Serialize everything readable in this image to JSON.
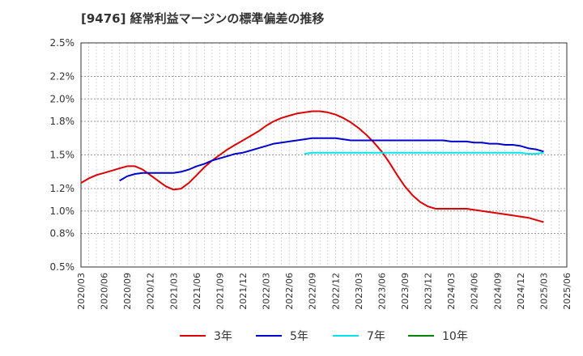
{
  "title": "[9476]  経常利益マージンの標準偏差の推移",
  "chart_data": {
    "type": "line",
    "title": "[9476]  経常利益マージンの標準偏差の推移",
    "y_ticks": [
      "0.5%",
      "0.8%",
      "1.0%",
      "1.2%",
      "1.5%",
      "1.8%",
      "2.0%",
      "2.2%",
      "2.5%"
    ],
    "ylim": [
      0.5,
      2.5
    ],
    "x_ticks": [
      "2020/03",
      "2020/06",
      "2020/09",
      "2020/12",
      "2021/03",
      "2021/06",
      "2021/09",
      "2021/12",
      "2022/03",
      "2022/06",
      "2022/09",
      "2022/12",
      "2023/03",
      "2023/06",
      "2023/09",
      "2023/12",
      "2024/03",
      "2024/06",
      "2024/09",
      "2024/12",
      "2025/03",
      "2025/06"
    ],
    "grid": true,
    "legend_position": "bottom",
    "series": [
      {
        "name": "3年",
        "color": "#dd0000",
        "x": [
          "2020/03",
          "2020/04",
          "2020/05",
          "2020/06",
          "2020/07",
          "2020/08",
          "2020/09",
          "2020/10",
          "2020/11",
          "2020/12",
          "2021/01",
          "2021/02",
          "2021/03",
          "2021/04",
          "2021/05",
          "2021/06",
          "2021/07",
          "2021/08",
          "2021/09",
          "2021/10",
          "2021/11",
          "2021/12",
          "2022/01",
          "2022/02",
          "2022/03",
          "2022/04",
          "2022/05",
          "2022/06",
          "2022/07",
          "2022/08",
          "2022/09",
          "2022/10",
          "2022/11",
          "2022/12",
          "2023/01",
          "2023/02",
          "2023/03",
          "2023/04",
          "2023/05",
          "2023/06",
          "2023/07",
          "2023/08",
          "2023/09",
          "2023/10",
          "2023/11",
          "2023/12",
          "2024/01",
          "2024/02",
          "2024/03",
          "2024/04",
          "2024/05",
          "2024/06",
          "2024/07",
          "2024/08",
          "2024/09",
          "2024/10",
          "2024/11",
          "2024/12",
          "2025/01",
          "2025/02",
          "2025/03"
        ],
        "values": [
          1.25,
          1.29,
          1.32,
          1.34,
          1.36,
          1.38,
          1.4,
          1.4,
          1.37,
          1.32,
          1.27,
          1.22,
          1.19,
          1.2,
          1.25,
          1.32,
          1.39,
          1.45,
          1.5,
          1.55,
          1.59,
          1.63,
          1.67,
          1.71,
          1.76,
          1.8,
          1.83,
          1.85,
          1.87,
          1.88,
          1.89,
          1.89,
          1.88,
          1.86,
          1.83,
          1.79,
          1.74,
          1.68,
          1.61,
          1.53,
          1.43,
          1.32,
          1.22,
          1.14,
          1.08,
          1.04,
          1.02,
          1.02,
          1.02,
          1.02,
          1.02,
          1.01,
          1.0,
          0.99,
          0.98,
          0.97,
          0.96,
          0.95,
          0.94,
          0.92,
          0.9
        ]
      },
      {
        "name": "5年",
        "color": "#0000cc",
        "x": [
          "2020/08",
          "2020/09",
          "2020/10",
          "2020/11",
          "2020/12",
          "2021/01",
          "2021/02",
          "2021/03",
          "2021/04",
          "2021/05",
          "2021/06",
          "2021/07",
          "2021/08",
          "2021/09",
          "2021/10",
          "2021/11",
          "2021/12",
          "2022/01",
          "2022/02",
          "2022/03",
          "2022/04",
          "2022/05",
          "2022/06",
          "2022/07",
          "2022/08",
          "2022/09",
          "2022/10",
          "2022/11",
          "2022/12",
          "2023/01",
          "2023/02",
          "2023/03",
          "2023/04",
          "2023/05",
          "2023/06",
          "2023/07",
          "2023/08",
          "2023/09",
          "2023/10",
          "2023/11",
          "2023/12",
          "2024/01",
          "2024/02",
          "2024/03",
          "2024/04",
          "2024/05",
          "2024/06",
          "2024/07",
          "2024/08",
          "2024/09",
          "2024/10",
          "2024/11",
          "2024/12",
          "2025/01",
          "2025/02",
          "2025/03"
        ],
        "values": [
          1.27,
          1.31,
          1.33,
          1.34,
          1.34,
          1.34,
          1.34,
          1.34,
          1.35,
          1.37,
          1.4,
          1.42,
          1.45,
          1.47,
          1.49,
          1.51,
          1.52,
          1.54,
          1.56,
          1.58,
          1.6,
          1.61,
          1.62,
          1.63,
          1.64,
          1.65,
          1.65,
          1.65,
          1.65,
          1.64,
          1.63,
          1.63,
          1.63,
          1.63,
          1.63,
          1.63,
          1.63,
          1.63,
          1.63,
          1.63,
          1.63,
          1.63,
          1.63,
          1.62,
          1.62,
          1.62,
          1.61,
          1.61,
          1.6,
          1.6,
          1.59,
          1.59,
          1.58,
          1.56,
          1.55,
          1.53
        ]
      },
      {
        "name": "7年",
        "color": "#00e5ee",
        "x": [
          "2022/08",
          "2022/09",
          "2022/10",
          "2022/11",
          "2022/12",
          "2023/01",
          "2023/02",
          "2023/03",
          "2023/04",
          "2023/05",
          "2023/06",
          "2023/07",
          "2023/08",
          "2023/09",
          "2023/10",
          "2023/11",
          "2023/12",
          "2024/01",
          "2024/02",
          "2024/03",
          "2024/04",
          "2024/05",
          "2024/06",
          "2024/07",
          "2024/08",
          "2024/09",
          "2024/10",
          "2024/11",
          "2024/12",
          "2025/01",
          "2025/02",
          "2025/03"
        ],
        "values": [
          1.51,
          1.52,
          1.52,
          1.52,
          1.52,
          1.52,
          1.52,
          1.52,
          1.52,
          1.52,
          1.52,
          1.52,
          1.52,
          1.52,
          1.52,
          1.52,
          1.52,
          1.52,
          1.52,
          1.52,
          1.52,
          1.52,
          1.52,
          1.52,
          1.52,
          1.52,
          1.52,
          1.52,
          1.52,
          1.51,
          1.51,
          1.52
        ]
      },
      {
        "name": "10年",
        "color": "#008000",
        "x": [],
        "values": []
      }
    ]
  }
}
